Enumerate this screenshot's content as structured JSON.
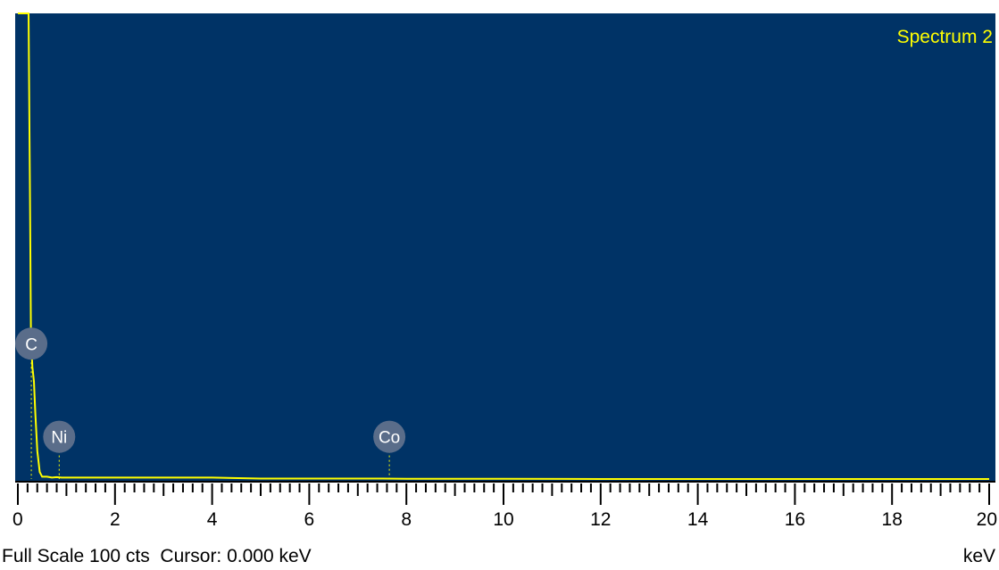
{
  "chart_data": {
    "type": "line",
    "title": "Spectrum 2",
    "xlabel": "keV",
    "xlim": [
      0,
      20
    ],
    "ylim": [
      0,
      100
    ],
    "x_ticks": [
      0,
      2,
      4,
      6,
      8,
      10,
      12,
      14,
      16,
      18,
      20
    ],
    "grid": false,
    "colors": {
      "background": "#003366",
      "trace": "#ffff00",
      "marker": "#5a6d8a"
    },
    "series": [
      {
        "x": [
          0.0,
          0.02,
          0.05,
          0.08,
          0.1,
          0.12,
          0.15,
          0.18,
          0.2,
          0.22,
          0.25,
          0.27,
          0.3,
          0.33,
          0.36,
          0.4,
          0.45,
          0.5,
          0.6,
          0.7,
          0.8,
          0.9,
          1.0,
          1.2,
          1.5,
          2.0,
          3.0,
          4.0,
          5.0,
          6.0,
          7.0,
          7.5,
          8.0,
          10.0,
          12.0,
          14.0,
          16.0,
          18.0,
          20.0
        ],
        "values": [
          100,
          100,
          100,
          100,
          100,
          100,
          100,
          100,
          100,
          100,
          60,
          30,
          24,
          21,
          14,
          6,
          1.5,
          0.5,
          0.5,
          0.3,
          0.4,
          0.3,
          0.3,
          0.3,
          0.3,
          0.3,
          0.3,
          0.3,
          0.1,
          0.1,
          0.1,
          0.1,
          0.05,
          0.05,
          0,
          0,
          0,
          0,
          0
        ]
      }
    ],
    "markers": [
      {
        "label": "C",
        "x": 0.277,
        "y": 26
      },
      {
        "label": "Ni",
        "x": 0.851,
        "y": 6
      },
      {
        "label": "Co",
        "x": 7.649,
        "y": 6
      }
    ],
    "status": {
      "full_scale": "Full Scale 100 cts",
      "cursor": "Cursor: 0.000 keV",
      "unit": "keV"
    }
  }
}
